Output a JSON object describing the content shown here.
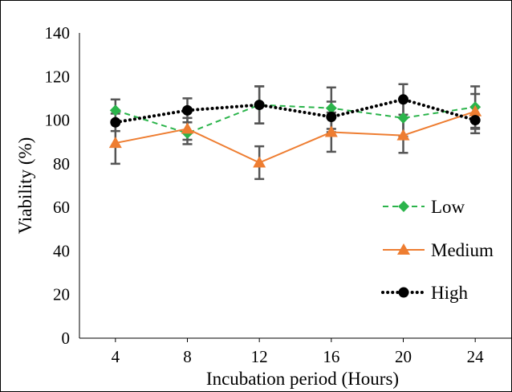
{
  "chart_data": {
    "type": "line",
    "xlabel": "Incubation period (Hours)",
    "ylabel": "Viability (%)",
    "x": [
      4,
      8,
      12,
      16,
      20,
      24
    ],
    "categories": [
      "4",
      "8",
      "12",
      "16",
      "20",
      "24"
    ],
    "ylim": [
      0,
      140
    ],
    "yticks": [
      0,
      20,
      40,
      60,
      80,
      100,
      120,
      140
    ],
    "grid": false,
    "legend": "right",
    "series": [
      {
        "name": "Low",
        "values": [
          104.5,
          94,
          107,
          105.5,
          101,
          106
        ],
        "errors": [
          5,
          5,
          8.5,
          9.5,
          8.5,
          9.5
        ],
        "color": "#2bb44b",
        "marker": "diamond",
        "line_style": "dashed"
      },
      {
        "name": "Medium",
        "values": [
          89.5,
          96,
          80.5,
          94.5,
          93,
          104
        ],
        "errors": [
          9.5,
          5,
          7.5,
          9,
          8,
          8
        ],
        "color": "#ee7d31",
        "marker": "triangle",
        "line_style": "solid"
      },
      {
        "name": "High",
        "values": [
          99,
          104.5,
          107,
          101.5,
          109.5,
          100
        ],
        "errors": [
          4,
          5.5,
          8.5,
          7,
          7,
          6
        ],
        "color": "#000000",
        "marker": "circle",
        "line_style": "dotted"
      }
    ],
    "error_bar_color": "#555555"
  }
}
